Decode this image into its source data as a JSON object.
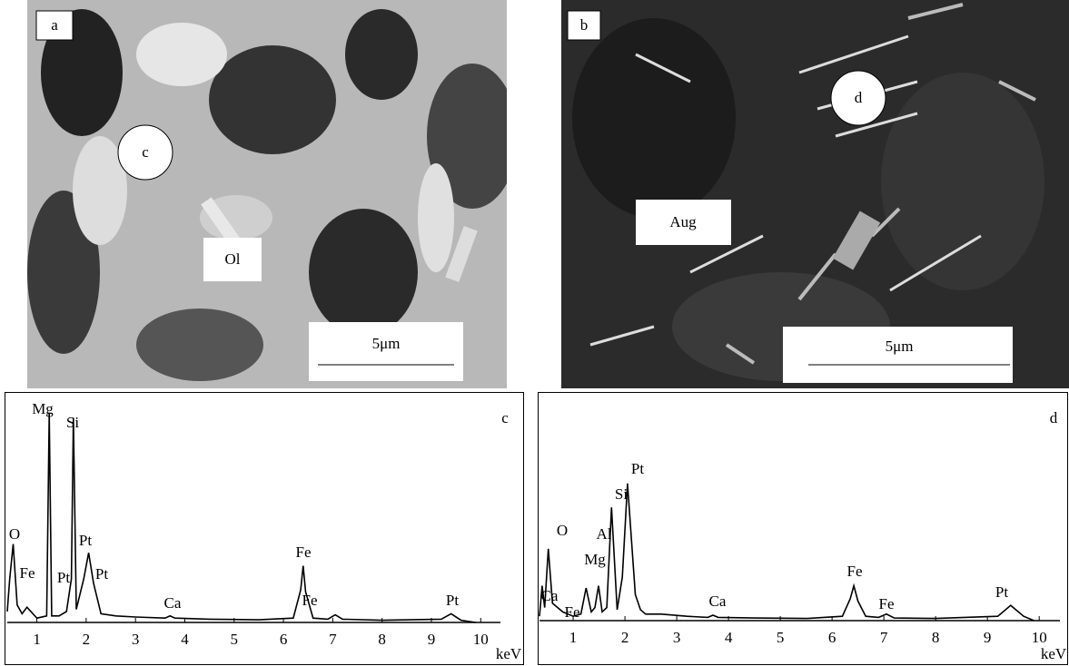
{
  "images": [
    {
      "panel_label": "a",
      "spot_label": "c",
      "phase_label": "Ol",
      "scale_bar": "5μm"
    },
    {
      "panel_label": "b",
      "spot_label": "d",
      "phase_label": "Aug",
      "scale_bar": "5μm"
    }
  ],
  "chart_data": [
    {
      "type": "line",
      "panel_label": "c",
      "x_label": "keV",
      "annotations": [
        "Mg",
        "Si",
        "O",
        "Fe",
        "Pt",
        "Pt",
        "Pt",
        "Ca",
        "Fe",
        "Fe",
        "Pt"
      ],
      "x": [
        0.4,
        0.45,
        0.52,
        0.6,
        0.7,
        0.8,
        1.0,
        1.2,
        1.25,
        1.3,
        1.45,
        1.6,
        1.7,
        1.74,
        1.8,
        1.95,
        2.05,
        2.15,
        2.3,
        2.6,
        3.0,
        3.6,
        3.7,
        3.8,
        4.5,
        5.5,
        6.2,
        6.35,
        6.4,
        6.45,
        6.6,
        6.9,
        7.05,
        7.2,
        8.0,
        9.2,
        9.4,
        9.6,
        9.9
      ],
      "series": [
        {
          "color": "#000000",
          "values": [
            5,
            20,
            36,
            8,
            4,
            7,
            2,
            3,
            96,
            3,
            3,
            5,
            20,
            94,
            6,
            20,
            32,
            18,
            4,
            3,
            2.5,
            2,
            3,
            2,
            1.5,
            1.2,
            2,
            15,
            26,
            14,
            2,
            1.5,
            3.5,
            1.5,
            1,
            1.5,
            4,
            1,
            0
          ]
        }
      ],
      "xlim": [
        0.4,
        10.4
      ],
      "ylim": [
        0,
        100
      ],
      "xticks": [
        1,
        2,
        3,
        4,
        5,
        6,
        7,
        8,
        9,
        10
      ]
    },
    {
      "type": "line",
      "panel_label": "d",
      "x_label": "keV",
      "annotations": [
        "Pt",
        "Si",
        "Al",
        "Mg",
        "O",
        "Ca",
        "Fe",
        "Ca",
        "Fe",
        "Fe",
        "Pt"
      ],
      "x": [
        0.35,
        0.4,
        0.45,
        0.52,
        0.6,
        0.7,
        0.8,
        1.0,
        1.15,
        1.25,
        1.35,
        1.42,
        1.49,
        1.56,
        1.65,
        1.74,
        1.85,
        1.95,
        2.05,
        2.2,
        2.3,
        2.4,
        2.7,
        3.2,
        3.6,
        3.7,
        3.8,
        4.5,
        5.5,
        6.2,
        6.35,
        6.42,
        6.5,
        6.65,
        6.9,
        7.05,
        7.2,
        8.0,
        9.2,
        9.45,
        9.7,
        9.9
      ],
      "series": [
        {
          "color": "#000000",
          "values": [
            2,
            16,
            6,
            33,
            8,
            6,
            4,
            2,
            3,
            15,
            4,
            6,
            16,
            4,
            6,
            52,
            5,
            20,
            63,
            12,
            5,
            3,
            3,
            2,
            1.5,
            2.5,
            1.5,
            1.2,
            1,
            2,
            10,
            16,
            9,
            2,
            1.5,
            3,
            1.2,
            1,
            2,
            7,
            2,
            0
          ]
        }
      ],
      "xlim": [
        0.35,
        10.4
      ],
      "ylim": [
        0,
        100
      ],
      "xticks": [
        1,
        2,
        3,
        4,
        5,
        6,
        7,
        8,
        9,
        10
      ]
    }
  ]
}
